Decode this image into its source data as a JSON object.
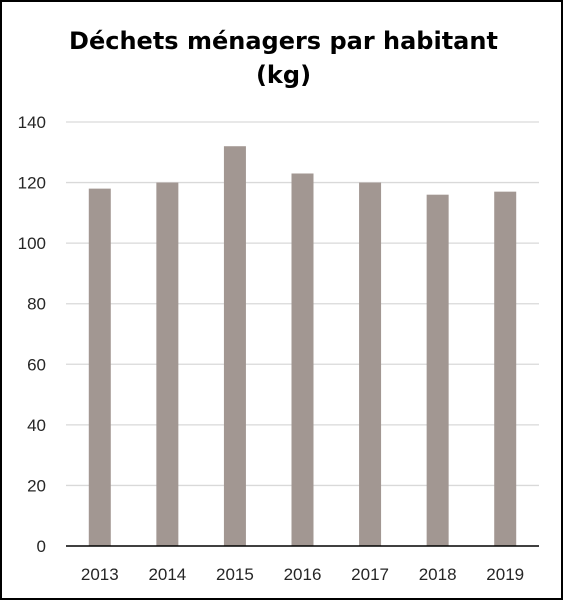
{
  "chart_data": {
    "type": "bar",
    "title_line1": "Déchets ménagers par habitant",
    "title_line2": "(kg)",
    "xlabel": "",
    "ylabel": "",
    "categories": [
      "2013",
      "2014",
      "2015",
      "2016",
      "2017",
      "2018",
      "2019"
    ],
    "values": [
      118,
      120,
      132,
      123,
      120,
      116,
      117
    ],
    "ylim": [
      0,
      140
    ],
    "yticks": [
      0,
      20,
      40,
      60,
      80,
      100,
      120,
      140
    ],
    "grid": true,
    "legend": "none",
    "bar_color": "#a29792",
    "grid_color": "#d9d9d9",
    "axis_color": "#000000"
  }
}
